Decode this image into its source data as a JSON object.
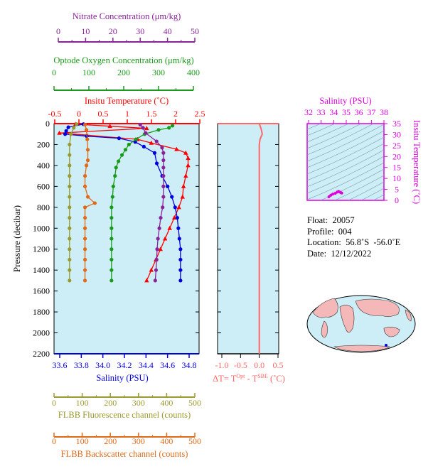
{
  "colors": {
    "temperature": "#ff0000",
    "salinity": "#0000dd",
    "oxygen": "#1a9a1a",
    "nitrate": "#882299",
    "fluorescence": "#9a9a30",
    "backscatter": "#e06a18",
    "delta_t": "#ff6666",
    "magenta": "#dd00dd",
    "panel_bg": "#cdeef7",
    "land": "#f4b8b8"
  },
  "axes": {
    "nitrate": {
      "title": "Nitrate Concentration (μm/kg)",
      "ticks": [
        "0",
        "10",
        "20",
        "30",
        "40",
        "50"
      ]
    },
    "oxygen": {
      "title": "Optode Oxygen Concentration (μm/kg)",
      "ticks": [
        "0",
        "100",
        "200",
        "300",
        "400"
      ]
    },
    "temperature": {
      "title": "Insitu Temperature (˚C)",
      "ticks": [
        "-0.5",
        "0",
        "0.5",
        "1",
        "1.5",
        "2",
        "2.5"
      ]
    },
    "pressure": {
      "title": "Pressure (decibar)",
      "ticks": [
        "0",
        "200",
        "400",
        "600",
        "800",
        "1000",
        "1200",
        "1400",
        "1600",
        "1800",
        "2000",
        "2200"
      ]
    },
    "salinity": {
      "title": "Salinity (PSU)",
      "ticks": [
        "33.6",
        "33.8",
        "34.0",
        "34.2",
        "34.4",
        "34.6",
        "34.8"
      ]
    },
    "delta_t": {
      "title": "ΔT= T",
      "sup1": "Opt",
      "mid": " - T",
      "sup2": "SBE",
      "end": " (˚C)",
      "ticks": [
        "-1.0",
        "-0.5",
        "0.0",
        "0.5"
      ]
    },
    "fluorescence": {
      "title": "FLBB Fluorescence channel (counts)",
      "ticks": [
        "0",
        "100",
        "200",
        "300",
        "400",
        "500"
      ]
    },
    "backscatter": {
      "title": "FLBB Backscatter channel (counts)",
      "ticks": [
        "0",
        "100",
        "200",
        "300",
        "400",
        "500"
      ]
    },
    "ts_salinity": {
      "title": "Salinity (PSU)",
      "ticks": [
        "32",
        "33",
        "34",
        "35",
        "36",
        "37",
        "38"
      ]
    },
    "ts_temperature": {
      "title": "Insitu Temperature (˚C)",
      "ticks": [
        "0",
        "5",
        "10",
        "15",
        "20",
        "25",
        "30",
        "35"
      ]
    }
  },
  "info": {
    "float": "Float:  20057",
    "profile": "Profile:  004",
    "location": "Location:  56.8˚S  -56.0˚E",
    "date": "Date:  12/12/2022"
  },
  "chart_data": {
    "type": "line",
    "y": {
      "label": "Pressure (decibar)",
      "range": [
        0,
        2200
      ],
      "inverted": true
    },
    "series": [
      {
        "key": "temperature",
        "axis": "temperature",
        "marker": "triangle",
        "points": [
          [
            -0.05,
            5
          ],
          [
            0.7,
            25
          ],
          [
            1.5,
            45
          ],
          [
            -0.4,
            90
          ],
          [
            0.2,
            110
          ],
          [
            1.3,
            150
          ],
          [
            1.6,
            185
          ],
          [
            2.15,
            245
          ],
          [
            2.35,
            280
          ],
          [
            2.4,
            330
          ],
          [
            2.4,
            400
          ],
          [
            2.35,
            500
          ],
          [
            2.3,
            600
          ],
          [
            2.28,
            700
          ],
          [
            2.2,
            800
          ],
          [
            2.1,
            900
          ],
          [
            2.0,
            1000
          ],
          [
            1.9,
            1100
          ],
          [
            1.8,
            1200
          ],
          [
            1.7,
            1300
          ],
          [
            1.6,
            1400
          ],
          [
            1.5,
            1500
          ]
        ]
      },
      {
        "key": "salinity",
        "axis": "salinity",
        "marker": "circle",
        "points": [
          [
            33.82,
            5
          ],
          [
            33.68,
            35
          ],
          [
            33.66,
            70
          ],
          [
            33.65,
            100
          ],
          [
            33.85,
            120
          ],
          [
            34.15,
            140
          ],
          [
            34.3,
            175
          ],
          [
            34.38,
            220
          ],
          [
            34.48,
            280
          ],
          [
            34.5,
            380
          ],
          [
            34.55,
            500
          ],
          [
            34.6,
            600
          ],
          [
            34.64,
            700
          ],
          [
            34.67,
            800
          ],
          [
            34.69,
            900
          ],
          [
            34.7,
            1000
          ],
          [
            34.71,
            1100
          ],
          [
            34.72,
            1200
          ],
          [
            34.72,
            1300
          ],
          [
            34.72,
            1400
          ],
          [
            34.72,
            1500
          ]
        ]
      },
      {
        "key": "oxygen",
        "axis": "oxygen",
        "marker": "circle",
        "points": [
          [
            340,
            20
          ],
          [
            330,
            40
          ],
          [
            300,
            60
          ],
          [
            260,
            100
          ],
          [
            235,
            150
          ],
          [
            215,
            200
          ],
          [
            205,
            250
          ],
          [
            195,
            300
          ],
          [
            185,
            360
          ],
          [
            178,
            420
          ],
          [
            175,
            500
          ],
          [
            170,
            600
          ],
          [
            168,
            700
          ],
          [
            165,
            800
          ],
          [
            165,
            900
          ],
          [
            165,
            1000
          ],
          [
            165,
            1100
          ],
          [
            165,
            1200
          ],
          [
            165,
            1300
          ],
          [
            165,
            1400
          ],
          [
            165,
            1500
          ]
        ]
      },
      {
        "key": "nitrate",
        "axis": "nitrate",
        "marker": "circle",
        "points": [
          [
            30,
            10
          ],
          [
            31,
            40
          ],
          [
            32,
            90
          ],
          [
            36,
            170
          ],
          [
            38,
            230
          ],
          [
            38.5,
            280
          ],
          [
            38.5,
            350
          ],
          [
            38.5,
            420
          ],
          [
            38.5,
            500
          ],
          [
            38.5,
            600
          ],
          [
            38.5,
            700
          ],
          [
            38.2,
            800
          ],
          [
            37.5,
            900
          ],
          [
            37,
            1000
          ],
          [
            36.5,
            1100
          ],
          [
            36.2,
            1200
          ],
          [
            36,
            1300
          ],
          [
            35.8,
            1400
          ],
          [
            35.5,
            1500
          ]
        ]
      },
      {
        "key": "fluorescence",
        "axis": "fluorescence",
        "marker": "circle",
        "points": [
          [
            80,
            5
          ],
          [
            70,
            40
          ],
          [
            60,
            100
          ],
          [
            55,
            200
          ],
          [
            55,
            300
          ],
          [
            55,
            400
          ],
          [
            55,
            500
          ],
          [
            55,
            600
          ],
          [
            55,
            700
          ],
          [
            55,
            800
          ],
          [
            55,
            900
          ],
          [
            55,
            1000
          ],
          [
            55,
            1100
          ],
          [
            55,
            1200
          ],
          [
            55,
            1300
          ],
          [
            55,
            1400
          ],
          [
            55,
            1500
          ]
        ]
      },
      {
        "key": "backscatter",
        "axis": "backscatter",
        "marker": "circle",
        "points": [
          [
            110,
            10
          ],
          [
            115,
            60
          ],
          [
            118,
            150
          ],
          [
            120,
            250
          ],
          [
            120,
            350
          ],
          [
            115,
            400
          ],
          [
            110,
            500
          ],
          [
            110,
            600
          ],
          [
            120,
            700
          ],
          [
            145,
            760
          ],
          [
            110,
            800
          ],
          [
            110,
            900
          ],
          [
            110,
            1000
          ],
          [
            110,
            1100
          ],
          [
            110,
            1200
          ],
          [
            110,
            1300
          ],
          [
            110,
            1400
          ],
          [
            110,
            1500
          ]
        ]
      },
      {
        "key": "delta_t",
        "axis": "delta_t",
        "marker": "none",
        "points": [
          [
            0.0,
            0
          ],
          [
            0.05,
            50
          ],
          [
            0.08,
            100
          ],
          [
            0.02,
            150
          ],
          [
            0.0,
            200
          ],
          [
            0.0,
            400
          ],
          [
            0.0,
            800
          ],
          [
            0.0,
            1200
          ],
          [
            0.0,
            1600
          ],
          [
            0.0,
            2000
          ],
          [
            0.0,
            2200
          ]
        ]
      }
    ],
    "ts_diagram": {
      "x": {
        "label": "Salinity (PSU)",
        "range": [
          32,
          38
        ]
      },
      "y": {
        "label": "Insitu Temperature (˚C)",
        "range": [
          -2,
          35
        ]
      },
      "points": [
        [
          33.7,
          -0.3
        ],
        [
          33.85,
          0.5
        ],
        [
          34.0,
          1.0
        ],
        [
          34.2,
          1.4
        ],
        [
          34.35,
          2.0
        ],
        [
          34.45,
          2.3
        ],
        [
          34.55,
          2.0
        ],
        [
          34.65,
          1.7
        ],
        [
          34.7,
          1.5
        ]
      ]
    }
  }
}
